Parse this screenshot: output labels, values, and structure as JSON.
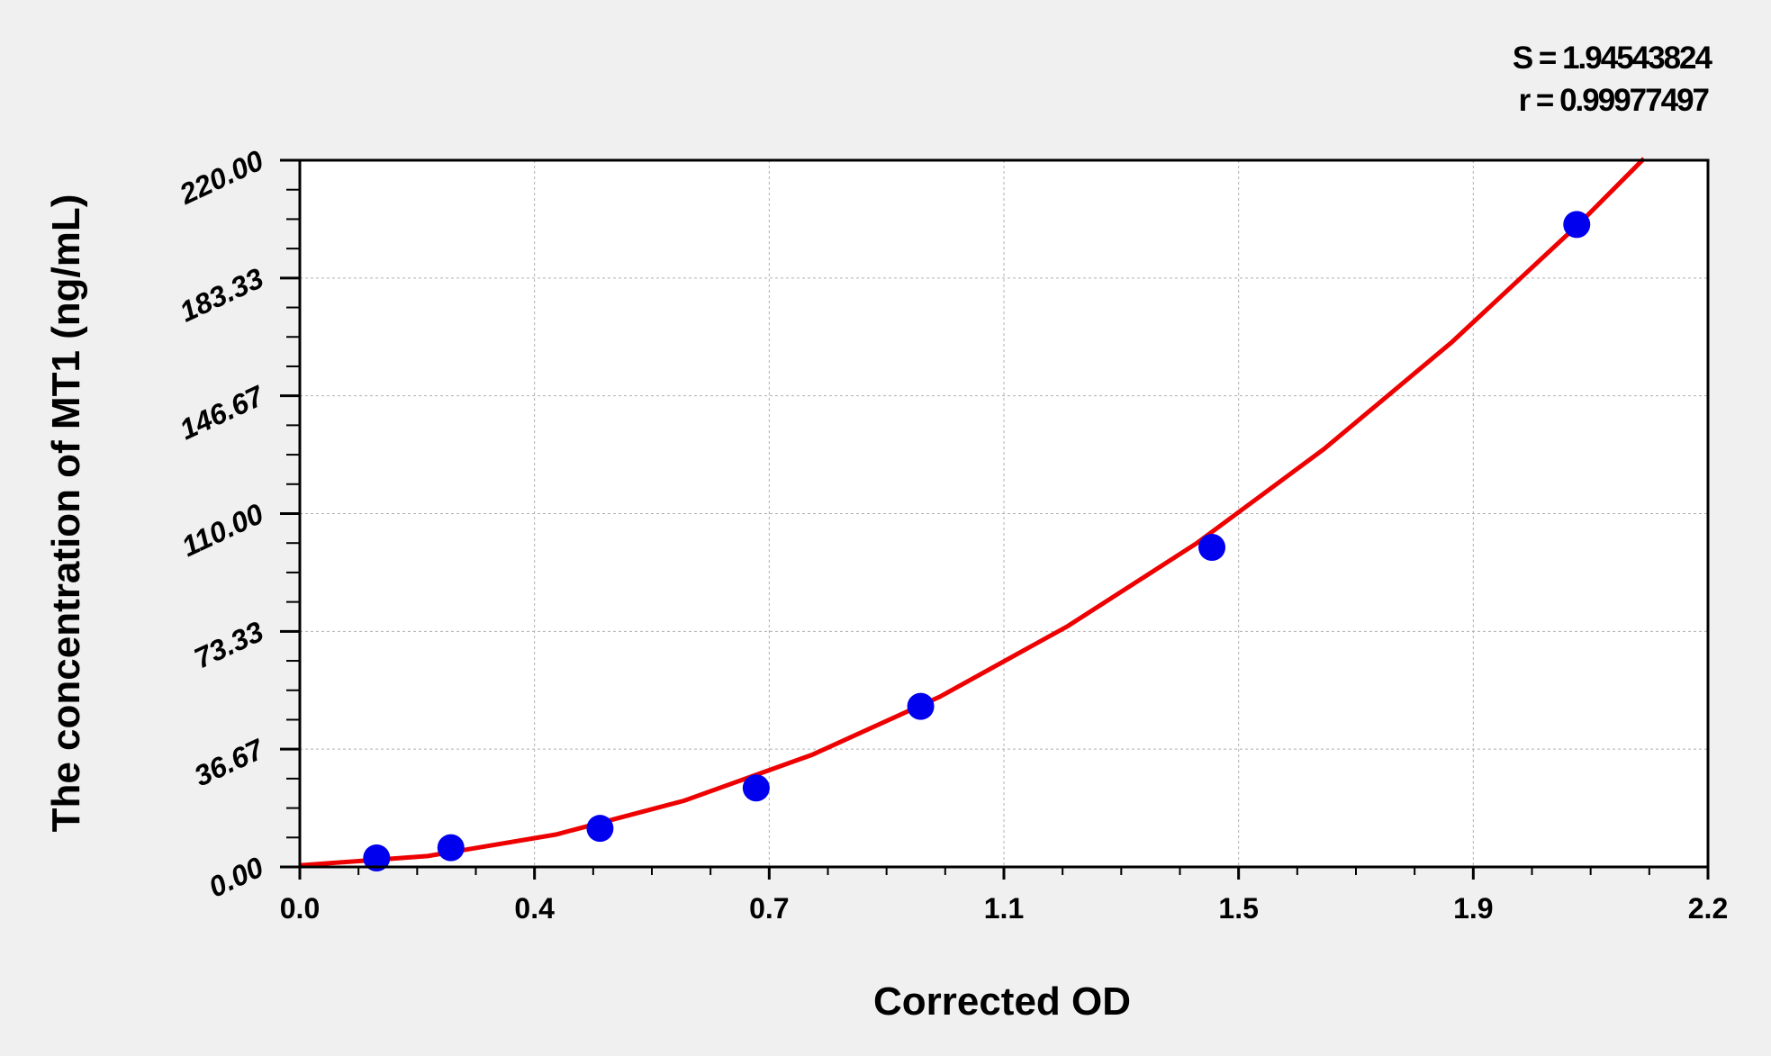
{
  "chart_data": {
    "type": "scatter",
    "title": "",
    "xlabel": "Corrected OD",
    "ylabel": "The concentration of MT1 (ng/mL)",
    "xlim": [
      0,
      2.2
    ],
    "ylim": [
      0,
      220
    ],
    "x_ticks": [
      "0.0",
      "0.4",
      "0.7",
      "1.1",
      "1.5",
      "1.9",
      "2.2"
    ],
    "y_ticks": [
      "0.00",
      "36.67",
      "73.33",
      "110.00",
      "146.67",
      "183.33",
      "220.00"
    ],
    "grid": true,
    "annotations": [
      "S = 1.94543824",
      "r = 0.99977497"
    ],
    "points": {
      "x": [
        0.12,
        0.236,
        0.469,
        0.713,
        0.97,
        1.425,
        1.995
      ],
      "y": [
        2.8,
        6,
        12,
        24.6,
        50,
        99.5,
        200
      ]
    },
    "fit_curve": {
      "x": [
        0,
        0.2,
        0.4,
        0.6,
        0.8,
        1.0,
        1.2,
        1.4,
        1.6,
        1.8,
        2.0,
        2.1
      ],
      "y": [
        0.5,
        3.4,
        10.1,
        20.6,
        34.9,
        53.0,
        75.0,
        100.6,
        130.1,
        163.4,
        200.5,
        220.5
      ]
    },
    "colors": {
      "points": "#0000ee",
      "curve": "#ee0000",
      "background": "#f0f0f0",
      "plot_area": "#ffffff"
    }
  }
}
